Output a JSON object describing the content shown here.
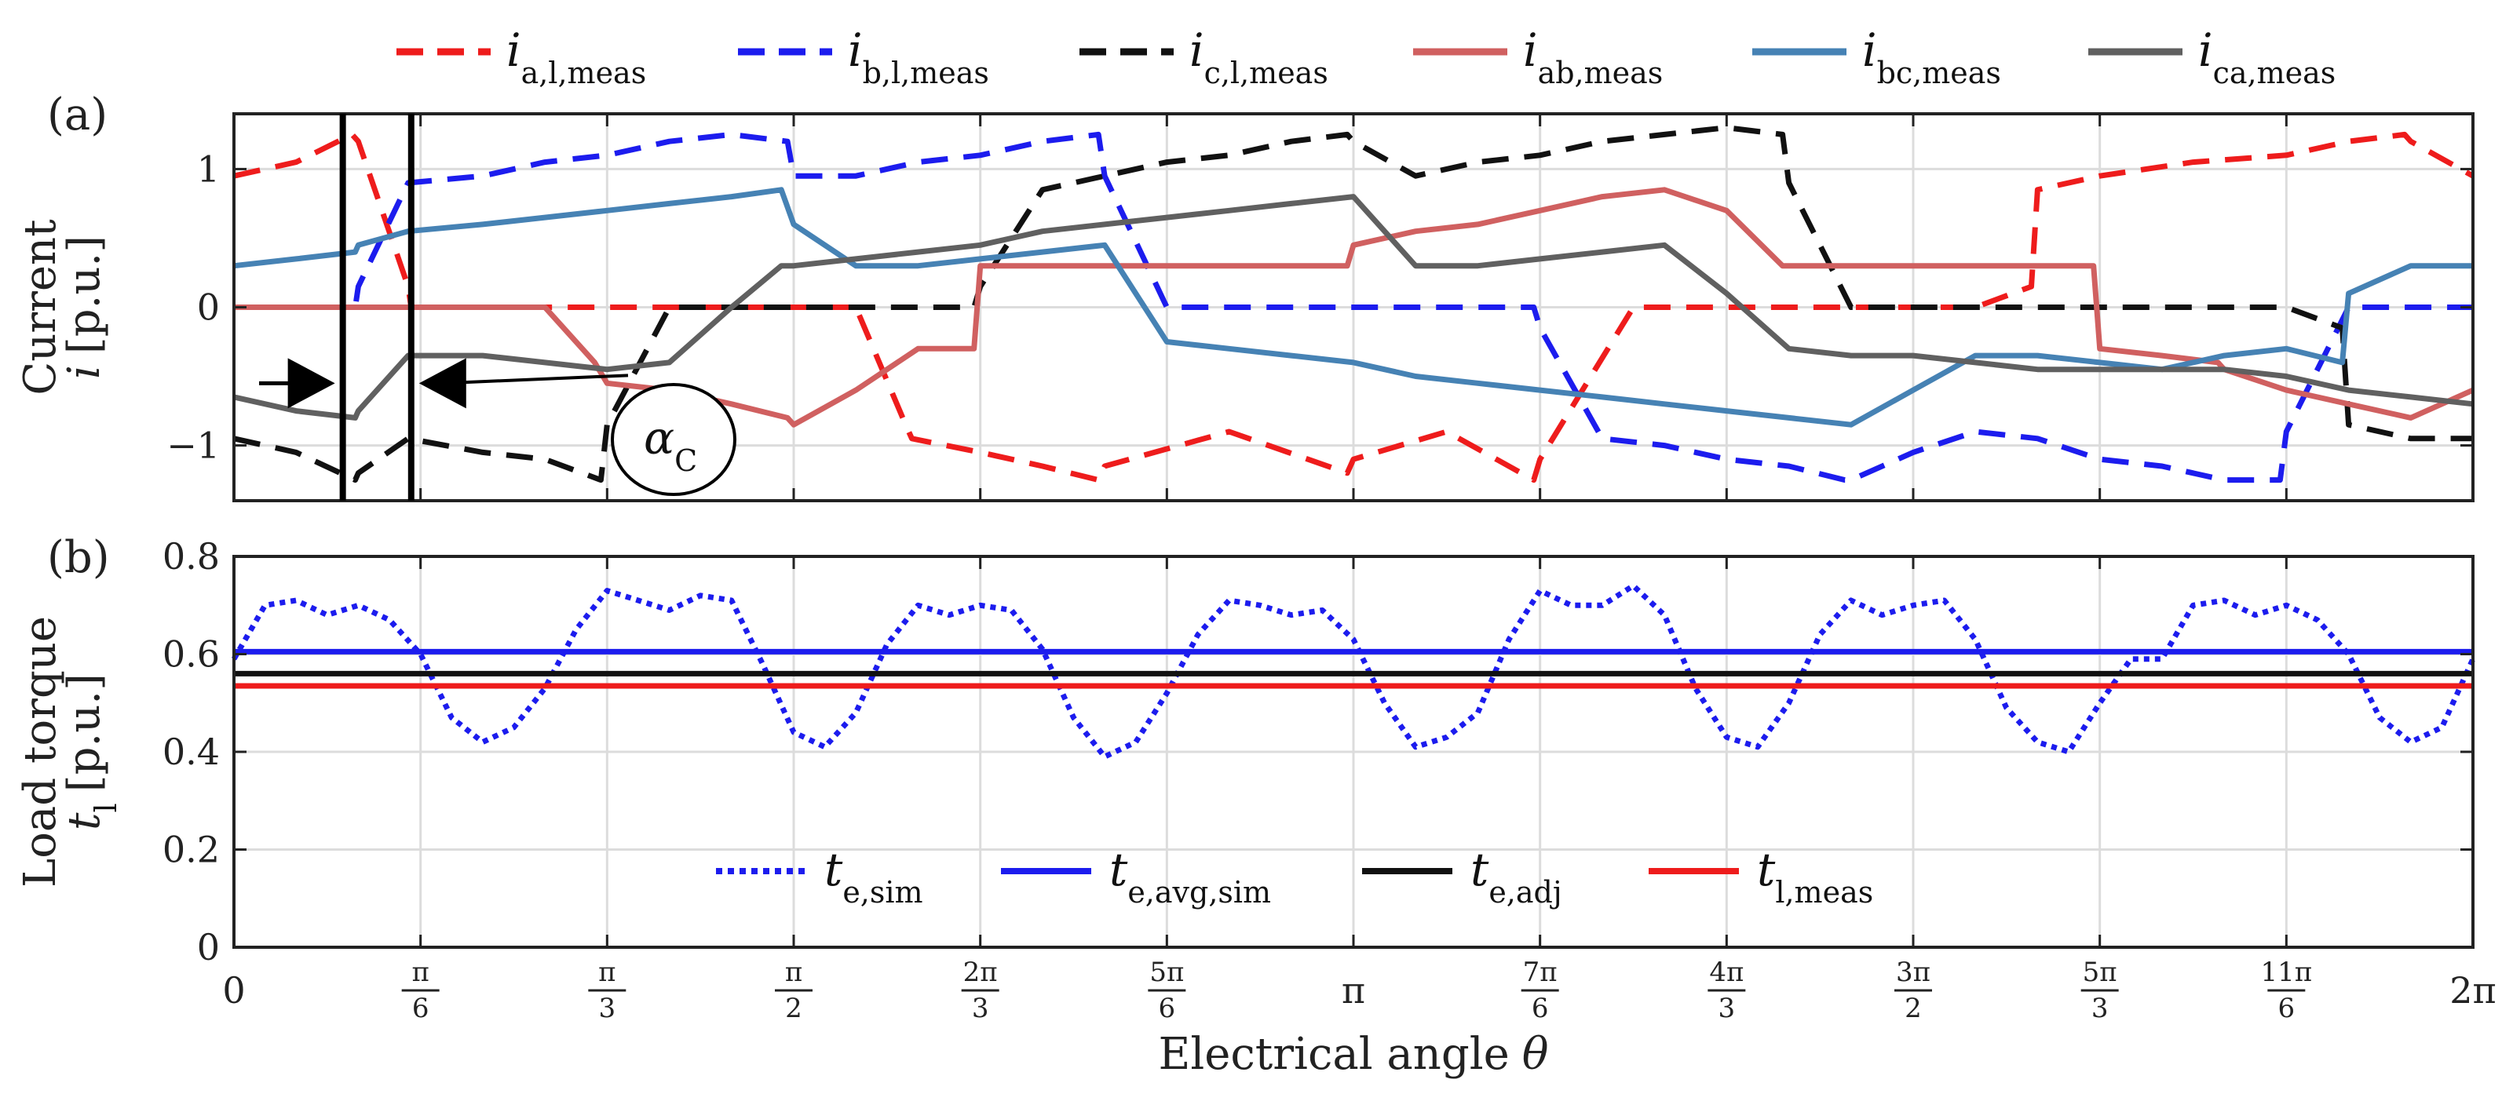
{
  "chart_data": [
    {
      "panel": "(a)",
      "type": "line",
      "ylabel_line1": "Current",
      "ylabel_var": "i",
      "ylabel_unit": "[p.u.]",
      "ylim": [
        -1.4,
        1.4
      ],
      "yticks": [
        {
          "v": -1,
          "label": "−1"
        },
        {
          "v": 0,
          "label": "0"
        },
        {
          "v": 1,
          "label": "1"
        }
      ],
      "xlim": [
        0,
        360
      ],
      "annotations": {
        "commutation_label_main": "α",
        "commutation_label_sub": "C",
        "commutation_start_deg": 17.5,
        "commutation_end_deg": 28.5
      },
      "series": [
        {
          "id": "ia",
          "main": "i",
          "sub": "a,l,meas",
          "color": "#ee1c1c",
          "style": "dashed",
          "x": [
            0,
            10,
            19,
            20,
            28,
            28.5,
            40,
            49,
            50,
            60,
            75,
            90,
            100,
            108,
            109,
            120,
            130,
            139,
            140,
            160,
            179,
            180,
            195,
            209,
            210,
            225,
            240,
            250,
            259,
            260,
            270,
            280,
            289,
            290,
            300,
            315,
            330,
            340,
            349,
            350,
            360
          ],
          "y": [
            0.95,
            1.05,
            1.25,
            1.2,
            0.15,
            0,
            0,
            0,
            0,
            0,
            0,
            0,
            0,
            -0.85,
            -0.95,
            -1.05,
            -1.15,
            -1.25,
            -1.15,
            -0.9,
            -1.2,
            -1.1,
            -0.9,
            -1.25,
            -1.1,
            0,
            0,
            0,
            0,
            0,
            0,
            0,
            0.15,
            0.85,
            0.95,
            1.05,
            1.1,
            1.2,
            1.25,
            1.2,
            0.95
          ]
        },
        {
          "id": "ib",
          "main": "i",
          "sub": "b,l,meas",
          "color": "#1c1cee",
          "style": "dashed",
          "x": [
            0,
            10,
            19.5,
            20,
            28,
            40,
            50,
            60,
            70,
            80,
            89,
            90,
            100,
            110,
            120,
            130,
            139,
            140,
            150,
            160,
            170,
            180,
            190,
            200,
            209,
            210,
            220,
            230,
            240,
            250,
            259,
            260,
            270,
            280,
            290,
            300,
            310,
            320,
            329,
            330,
            340,
            350,
            360
          ],
          "y": [
            0,
            0,
            0,
            0.15,
            0.9,
            0.95,
            1.05,
            1.1,
            1.2,
            1.25,
            1.2,
            0.95,
            0.95,
            1.05,
            1.1,
            1.2,
            1.25,
            0.95,
            0,
            0,
            0,
            0,
            0,
            0,
            0,
            -0.15,
            -0.95,
            -1.0,
            -1.1,
            -1.15,
            -1.25,
            -1.25,
            -1.05,
            -0.9,
            -0.95,
            -1.1,
            -1.15,
            -1.25,
            -1.25,
            -0.9,
            0,
            0,
            0
          ]
        },
        {
          "id": "ic",
          "main": "i",
          "sub": "c,l,meas",
          "color": "#111111",
          "style": "dashed",
          "x": [
            0,
            10,
            19.5,
            20,
            28,
            40,
            50,
            59,
            60,
            70,
            80,
            90,
            100,
            110,
            119,
            120,
            130,
            140,
            150,
            160,
            170,
            179,
            180,
            190,
            200,
            210,
            220,
            230,
            240,
            249,
            250,
            260,
            270,
            280,
            290,
            300,
            310,
            320,
            330,
            339,
            340,
            350,
            360
          ],
          "y": [
            -0.95,
            -1.05,
            -1.25,
            -1.2,
            -0.95,
            -1.05,
            -1.1,
            -1.25,
            -0.85,
            0,
            0,
            0,
            0,
            0,
            0,
            0.15,
            0.85,
            0.95,
            1.05,
            1.1,
            1.2,
            1.25,
            1.2,
            0.95,
            1.05,
            1.1,
            1.2,
            1.25,
            1.3,
            1.25,
            0.9,
            0,
            0,
            0,
            0,
            0,
            0,
            0,
            0,
            -0.15,
            -0.85,
            -0.95,
            -0.95
          ]
        },
        {
          "id": "iab",
          "main": "i",
          "sub": "ab,meas",
          "color": "#d06060",
          "style": "solid",
          "x": [
            0,
            10,
            19.5,
            20,
            28,
            40,
            50,
            58,
            60,
            70,
            80,
            89,
            90,
            100,
            110,
            119,
            120,
            130,
            139,
            140,
            150,
            160,
            170,
            179,
            180,
            190,
            200,
            210,
            220,
            230,
            240,
            249,
            250,
            260,
            270,
            280,
            290,
            299,
            300,
            310,
            319,
            320,
            330,
            340,
            350,
            360
          ],
          "y": [
            0,
            0,
            0,
            0,
            0,
            0,
            0,
            -0.4,
            -0.55,
            -0.6,
            -0.7,
            -0.8,
            -0.85,
            -0.6,
            -0.3,
            -0.3,
            0.3,
            0.3,
            0.3,
            0.3,
            0.3,
            0.3,
            0.3,
            0.3,
            0.45,
            0.55,
            0.6,
            0.7,
            0.8,
            0.85,
            0.7,
            0.3,
            0.3,
            0.3,
            0.3,
            0.3,
            0.3,
            0.3,
            -0.3,
            -0.35,
            -0.4,
            -0.45,
            -0.6,
            -0.7,
            -0.8,
            -0.6
          ]
        },
        {
          "id": "ibc",
          "main": "i",
          "sub": "bc,meas",
          "color": "#4682b4",
          "style": "solid",
          "x": [
            0,
            10,
            19.5,
            20,
            28,
            40,
            50,
            60,
            70,
            80,
            88,
            90,
            100,
            110,
            120,
            130,
            140,
            150,
            160,
            170,
            180,
            190,
            200,
            210,
            220,
            230,
            240,
            250,
            260,
            270,
            280,
            290,
            300,
            310,
            320,
            330,
            339,
            340,
            350,
            360
          ],
          "y": [
            0.3,
            0.35,
            0.4,
            0.45,
            0.55,
            0.6,
            0.65,
            0.7,
            0.75,
            0.8,
            0.85,
            0.6,
            0.3,
            0.3,
            0.35,
            0.4,
            0.45,
            -0.25,
            -0.3,
            -0.35,
            -0.4,
            -0.5,
            -0.55,
            -0.6,
            -0.65,
            -0.7,
            -0.75,
            -0.8,
            -0.85,
            -0.6,
            -0.35,
            -0.35,
            -0.4,
            -0.45,
            -0.35,
            -0.3,
            -0.4,
            0.1,
            0.3,
            0.3
          ]
        },
        {
          "id": "ica",
          "main": "i",
          "sub": "ca,meas",
          "color": "#606060",
          "style": "solid",
          "x": [
            0,
            10,
            19.5,
            20,
            28,
            40,
            50,
            60,
            70,
            80,
            88,
            90,
            100,
            110,
            120,
            130,
            140,
            150,
            160,
            170,
            180,
            190,
            200,
            210,
            220,
            230,
            240,
            250,
            260,
            270,
            280,
            290,
            300,
            310,
            320,
            330,
            340,
            350,
            360
          ],
          "y": [
            -0.65,
            -0.75,
            -0.8,
            -0.75,
            -0.35,
            -0.35,
            -0.4,
            -0.45,
            -0.4,
            0,
            0.3,
            0.3,
            0.35,
            0.4,
            0.45,
            0.55,
            0.6,
            0.65,
            0.7,
            0.75,
            0.8,
            0.3,
            0.3,
            0.35,
            0.4,
            0.45,
            0.1,
            -0.3,
            -0.35,
            -0.35,
            -0.4,
            -0.45,
            -0.45,
            -0.45,
            -0.45,
            -0.5,
            -0.6,
            -0.65,
            -0.7
          ]
        }
      ]
    },
    {
      "panel": "(b)",
      "type": "line",
      "ylabel_line1": "Load torque",
      "ylabel_var": "t",
      "ylabel_sub": "l",
      "ylabel_unit": "[p.u.]",
      "ylim": [
        0,
        0.8
      ],
      "yticks": [
        {
          "v": 0,
          "label": "0"
        },
        {
          "v": 0.2,
          "label": "0.2"
        },
        {
          "v": 0.4,
          "label": "0.4"
        },
        {
          "v": 0.6,
          "label": "0.6"
        },
        {
          "v": 0.8,
          "label": "0.8"
        }
      ],
      "xlim": [
        0,
        360
      ],
      "xlabel": "Electrical angle",
      "xlabel_var": "θ",
      "xticks": [
        {
          "v": 0,
          "label": "0"
        },
        {
          "v": 30,
          "num": "π",
          "den": "6"
        },
        {
          "v": 60,
          "num": "π",
          "den": "3"
        },
        {
          "v": 90,
          "num": "π",
          "den": "2"
        },
        {
          "v": 120,
          "num": "2π",
          "den": "3"
        },
        {
          "v": 150,
          "num": "5π",
          "den": "6"
        },
        {
          "v": 180,
          "label": "π"
        },
        {
          "v": 210,
          "num": "7π",
          "den": "6"
        },
        {
          "v": 240,
          "num": "4π",
          "den": "3"
        },
        {
          "v": 270,
          "num": "3π",
          "den": "2"
        },
        {
          "v": 300,
          "num": "5π",
          "den": "3"
        },
        {
          "v": 330,
          "num": "11π",
          "den": "6"
        },
        {
          "v": 360,
          "label": "2π"
        }
      ],
      "series": [
        {
          "id": "te_sim",
          "main": "t",
          "sub": "e,sim",
          "color": "#1c1cee",
          "style": "dotted",
          "x": [
            0,
            5,
            10,
            15,
            20,
            25,
            30,
            35,
            40,
            45,
            50,
            55,
            60,
            65,
            70,
            75,
            80,
            85,
            90,
            95,
            100,
            105,
            110,
            115,
            120,
            125,
            130,
            135,
            140,
            145,
            150,
            155,
            160,
            165,
            170,
            175,
            180,
            185,
            190,
            195,
            200,
            205,
            210,
            215,
            220,
            225,
            230,
            235,
            240,
            245,
            250,
            255,
            260,
            265,
            270,
            275,
            280,
            285,
            290,
            295,
            300,
            305,
            310,
            315,
            320,
            325,
            330,
            335,
            340,
            345,
            350,
            355,
            360
          ],
          "y": [
            0.59,
            0.7,
            0.71,
            0.68,
            0.7,
            0.67,
            0.6,
            0.47,
            0.42,
            0.45,
            0.53,
            0.65,
            0.73,
            0.71,
            0.69,
            0.72,
            0.71,
            0.58,
            0.44,
            0.41,
            0.48,
            0.62,
            0.7,
            0.68,
            0.7,
            0.69,
            0.61,
            0.47,
            0.39,
            0.42,
            0.52,
            0.64,
            0.71,
            0.7,
            0.68,
            0.69,
            0.63,
            0.5,
            0.41,
            0.43,
            0.48,
            0.63,
            0.73,
            0.7,
            0.7,
            0.74,
            0.68,
            0.53,
            0.43,
            0.41,
            0.5,
            0.64,
            0.71,
            0.68,
            0.7,
            0.71,
            0.63,
            0.49,
            0.42,
            0.4,
            0.5,
            0.59,
            0.59,
            0.7,
            0.71,
            0.68,
            0.7,
            0.67,
            0.6,
            0.47,
            0.42,
            0.45,
            0.59
          ]
        },
        {
          "id": "te_avg",
          "main": "t",
          "sub": "e,avg,sim",
          "color": "#1c1cee",
          "style": "solid",
          "x": [
            0,
            360
          ],
          "y": [
            0.605,
            0.605
          ]
        },
        {
          "id": "te_adj",
          "main": "t",
          "sub": "e,adj",
          "color": "#111111",
          "style": "solid",
          "x": [
            0,
            360
          ],
          "y": [
            0.56,
            0.56
          ]
        },
        {
          "id": "tl_meas",
          "main": "t",
          "sub": "l,meas",
          "color": "#ee1c1c",
          "style": "solid",
          "x": [
            0,
            360
          ],
          "y": [
            0.535,
            0.535
          ]
        }
      ]
    }
  ]
}
